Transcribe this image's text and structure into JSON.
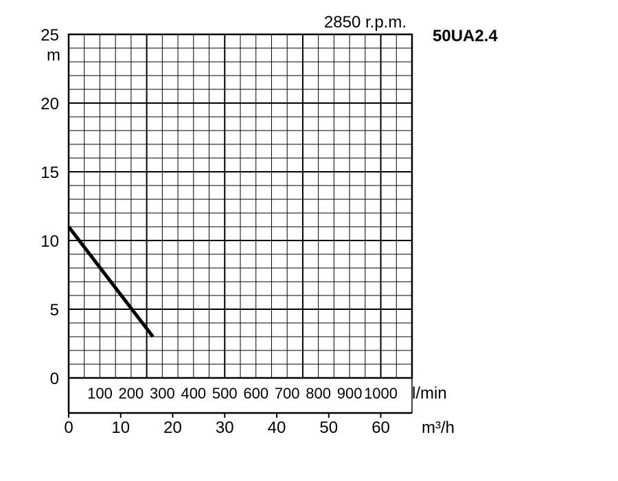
{
  "chart_data": {
    "type": "line",
    "title": "50UA2.4",
    "subtitle": "2850 r.p.m.",
    "ylabel": "m",
    "xlabel": "m³/h",
    "secondary_xlabel": "l/min",
    "ylim": [
      0,
      25
    ],
    "xlim": [
      0,
      66
    ],
    "y_ticks": [
      "0",
      "5",
      "10",
      "15",
      "20",
      "25"
    ],
    "x_ticks": [
      "0",
      "10",
      "20",
      "30",
      "40",
      "50",
      "60"
    ],
    "secondary_x_ticks": [
      "100",
      "200",
      "300",
      "400",
      "500",
      "600",
      "700",
      "800",
      "900",
      "1000"
    ],
    "grid": true,
    "series": [
      {
        "x": [
          0,
          16.2
        ],
        "y": [
          11,
          3
        ]
      }
    ]
  }
}
